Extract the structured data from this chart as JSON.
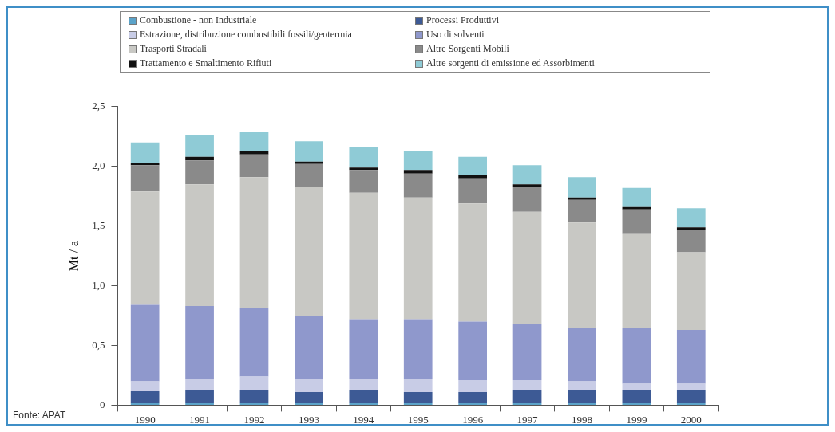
{
  "chart_data": {
    "type": "bar",
    "stacked": true,
    "ylabel": "Mt / a",
    "categories": [
      "1990",
      "1991",
      "1992",
      "1993",
      "1994",
      "1995",
      "1996",
      "1997",
      "1998",
      "1999",
      "2000"
    ],
    "series": [
      {
        "name": "Combustione - non Industriale",
        "color": "#5ba3c9",
        "values": [
          0.02,
          0.02,
          0.02,
          0.02,
          0.02,
          0.02,
          0.02,
          0.02,
          0.02,
          0.02,
          0.02
        ]
      },
      {
        "name": "Processi Produttivi",
        "color": "#3d5a95",
        "values": [
          0.1,
          0.11,
          0.11,
          0.09,
          0.11,
          0.09,
          0.09,
          0.11,
          0.11,
          0.11,
          0.11
        ]
      },
      {
        "name": "Estrazione, distribuzione combustibili fossili/geotermia",
        "color": "#c8cce6",
        "values": [
          0.08,
          0.09,
          0.11,
          0.11,
          0.09,
          0.11,
          0.1,
          0.08,
          0.07,
          0.05,
          0.05
        ]
      },
      {
        "name": "Uso di solventi",
        "color": "#8f98cc",
        "values": [
          0.64,
          0.61,
          0.57,
          0.53,
          0.5,
          0.5,
          0.49,
          0.47,
          0.45,
          0.47,
          0.45
        ]
      },
      {
        "name": "Trasporti Stradali",
        "color": "#c8c8c4",
        "values": [
          0.95,
          1.02,
          1.1,
          1.08,
          1.06,
          1.02,
          0.99,
          0.94,
          0.88,
          0.79,
          0.65
        ]
      },
      {
        "name": "Altre Sorgenti Mobili",
        "color": "#8a8a8a",
        "values": [
          0.22,
          0.2,
          0.19,
          0.19,
          0.19,
          0.2,
          0.21,
          0.21,
          0.19,
          0.2,
          0.19
        ]
      },
      {
        "name": "Trattamento e Smaltimento Rifiuti",
        "color": "#111111",
        "values": [
          0.02,
          0.03,
          0.03,
          0.02,
          0.02,
          0.03,
          0.03,
          0.02,
          0.02,
          0.02,
          0.02
        ]
      },
      {
        "name": "Altre sorgenti di emissione ed Assorbimenti",
        "color": "#8fcbd6",
        "values": [
          0.17,
          0.18,
          0.16,
          0.17,
          0.17,
          0.16,
          0.15,
          0.16,
          0.17,
          0.16,
          0.16
        ]
      }
    ],
    "ylim": [
      0,
      2.5
    ],
    "yticks": [
      {
        "value": 0,
        "label": "0"
      },
      {
        "value": 0.5,
        "label": "0,5"
      },
      {
        "value": 1,
        "label": "1,0"
      },
      {
        "value": 1.5,
        "label": "1,5"
      },
      {
        "value": 2,
        "label": "2,0"
      },
      {
        "value": 2.5,
        "label": "2,5"
      }
    ],
    "grid": false,
    "legend": "top",
    "annotations": [
      "Fonte: APAT"
    ]
  }
}
